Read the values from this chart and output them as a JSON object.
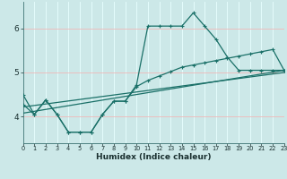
{
  "xlabel": "Humidex (Indice chaleur)",
  "xlim": [
    0,
    23
  ],
  "ylim": [
    3.4,
    6.6
  ],
  "yticks": [
    4,
    5,
    6
  ],
  "xticks": [
    0,
    1,
    2,
    3,
    4,
    5,
    6,
    7,
    8,
    9,
    10,
    11,
    12,
    13,
    14,
    15,
    16,
    17,
    18,
    19,
    20,
    21,
    22,
    23
  ],
  "bg_color": "#cce8e8",
  "line_color": "#1a7068",
  "grid_color_v": "#e8ffff",
  "grid_color_h": "#f0b8b8",
  "line0_x": [
    0,
    1,
    2,
    3,
    4,
    5,
    6,
    7,
    8,
    9,
    10,
    11,
    12,
    13,
    14,
    15,
    16,
    17,
    18,
    19,
    20,
    21,
    22,
    23
  ],
  "line0_y": [
    4.5,
    4.05,
    4.38,
    4.05,
    3.65,
    3.65,
    3.65,
    4.05,
    4.35,
    4.35,
    4.72,
    6.05,
    6.05,
    6.05,
    6.05,
    6.35,
    6.05,
    5.75,
    5.35,
    5.05,
    5.05,
    5.05,
    5.05,
    5.05
  ],
  "line1_x": [
    0,
    1,
    2,
    3,
    4,
    5,
    6,
    7,
    8,
    9,
    10,
    11,
    12,
    13,
    14,
    15,
    16,
    17,
    18,
    19,
    20,
    21,
    22,
    23
  ],
  "line1_y": [
    4.28,
    4.05,
    4.38,
    4.05,
    3.65,
    3.65,
    3.65,
    4.05,
    4.35,
    4.35,
    4.68,
    4.82,
    4.92,
    5.02,
    5.12,
    5.17,
    5.22,
    5.27,
    5.32,
    5.37,
    5.42,
    5.47,
    5.52,
    5.05
  ],
  "line2_x": [
    0,
    23
  ],
  "line2_y": [
    4.22,
    5.0
  ],
  "line3_x": [
    0,
    23
  ],
  "line3_y": [
    4.08,
    5.05
  ]
}
